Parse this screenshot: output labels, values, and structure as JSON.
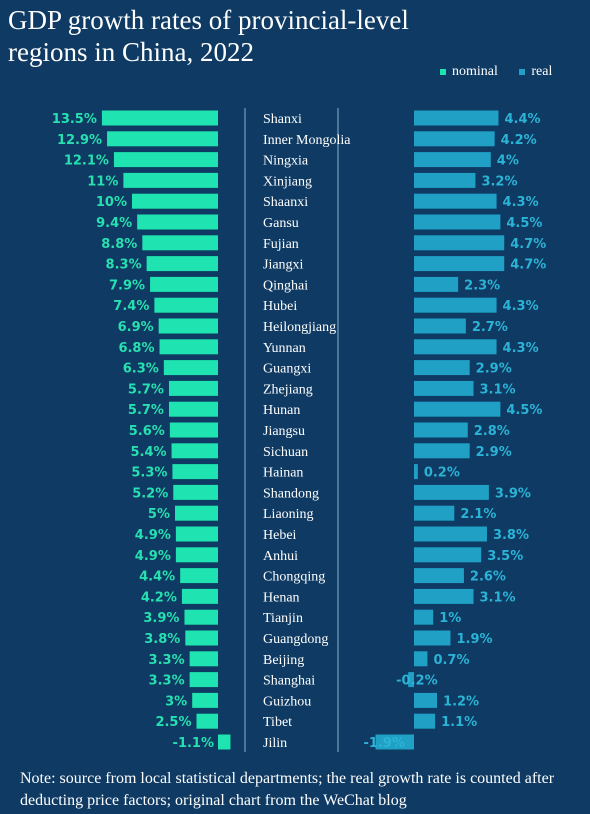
{
  "title": "GDP growth rates of provincial-level regions in China, 2022",
  "legend": {
    "nominal": "nominal",
    "real": "real"
  },
  "colors": {
    "nominal": "#1fe3b0",
    "real": "#1fa0c4",
    "nominal_label": "#27e0b0",
    "real_label": "#2bb3d6",
    "background": "#0e3a63"
  },
  "note": "Note: source from local statistical departments; the real growth rate is counted after deducting price factors; original chart from the WeChat blog",
  "chart_data": {
    "type": "bar",
    "title": "GDP growth rates of provincial-level regions in China, 2022",
    "categories": [
      "Shanxi",
      "Inner Mongolia",
      "Ningxia",
      "Xinjiang",
      "Shaanxi",
      "Gansu",
      "Fujian",
      "Jiangxi",
      "Qinghai",
      "Hubei",
      "Heilongjiang",
      "Yunnan",
      "Guangxi",
      "Zhejiang",
      "Hunan",
      "Jiangsu",
      "Sichuan",
      "Hainan",
      "Shandong",
      "Liaoning",
      "Hebei",
      "Anhui",
      "Chongqing",
      "Henan",
      "Tianjin",
      "Guangdong",
      "Beijing",
      "Shanghai",
      "Guizhou",
      "Tibet",
      "Jilin"
    ],
    "series": [
      {
        "name": "nominal",
        "values": [
          13.5,
          12.9,
          12.1,
          11,
          10,
          9.4,
          8.8,
          8.3,
          7.9,
          7.4,
          6.9,
          6.8,
          6.3,
          5.7,
          5.7,
          5.6,
          5.4,
          5.3,
          5.2,
          5,
          4.9,
          4.9,
          4.4,
          4.2,
          3.9,
          3.8,
          3.3,
          3.3,
          3,
          2.5,
          -1.1
        ],
        "labels": [
          "13.5%",
          "12.9%",
          "12.1%",
          "11%",
          "10%",
          "9.4%",
          "8.8%",
          "8.3%",
          "7.9%",
          "7.4%",
          "6.9%",
          "6.8%",
          "6.3%",
          "5.7%",
          "5.7%",
          "5.6%",
          "5.4%",
          "5.3%",
          "5.2%",
          "5%",
          "4.9%",
          "4.9%",
          "4.4%",
          "4.2%",
          "3.9%",
          "3.8%",
          "3.3%",
          "3.3%",
          "3%",
          "2.5%",
          "-1.1%"
        ]
      },
      {
        "name": "real",
        "values": [
          4.4,
          4.2,
          4,
          3.2,
          4.3,
          4.5,
          4.7,
          4.7,
          2.3,
          4.3,
          2.7,
          4.3,
          2.9,
          3.1,
          4.5,
          2.8,
          2.9,
          0.2,
          3.9,
          2.1,
          3.8,
          3.5,
          2.6,
          3.1,
          1,
          1.9,
          0.7,
          -0.2,
          1.2,
          1.1,
          -1.9
        ],
        "labels": [
          "4.4%",
          "4.2%",
          "4%",
          "3.2%",
          "4.3%",
          "4.5%",
          "4.7%",
          "4.7%",
          "2.3%",
          "4.3%",
          "2.7%",
          "4.3%",
          "2.9%",
          "3.1%",
          "4.5%",
          "2.8%",
          "2.9%",
          "0.2%",
          "3.9%",
          "2.1%",
          "3.8%",
          "3.5%",
          "2.6%",
          "3.1%",
          "1%",
          "1.9%",
          "0.7%",
          "-0.2%",
          "1.2%",
          "1.1%",
          "-1.9%"
        ]
      }
    ]
  }
}
